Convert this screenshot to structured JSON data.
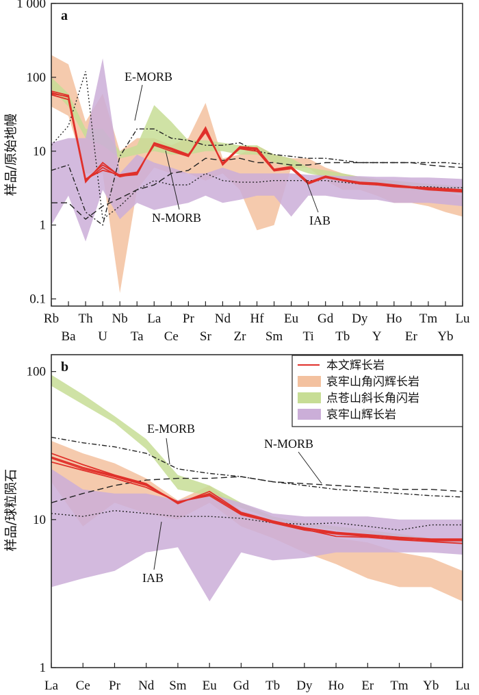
{
  "chart_data": [
    {
      "panel": "a",
      "type": "line",
      "ylabel": "样品/原始地幔",
      "yscale": "log",
      "ylim": [
        0.08,
        1000
      ],
      "yticks": [
        0.1,
        1,
        10,
        100,
        1000
      ],
      "ytick_labels": [
        "0.1",
        "1",
        "10",
        "100",
        "1 000"
      ],
      "categories": [
        "Rb",
        "Ba",
        "Th",
        "U",
        "Nb",
        "Ta",
        "La",
        "Ce",
        "Pr",
        "Sr",
        "Nd",
        "Zr",
        "Hf",
        "Sm",
        "Eu",
        "Ti",
        "Gd",
        "Tb",
        "Dy",
        "Y",
        "Ho",
        "Er",
        "Tm",
        "Yb",
        "Lu"
      ],
      "bands": [
        {
          "id": "ailaoshan-hornblende-gabbro",
          "lower": [
            40,
            30,
            5,
            5,
            0.12,
            3,
            6,
            5,
            5,
            4,
            5,
            3,
            0.85,
            1,
            6,
            6,
            4,
            3,
            3,
            2.5,
            2,
            2,
            1.8,
            1.5,
            1.3
          ],
          "upper": [
            200,
            150,
            25,
            60,
            10,
            15,
            15,
            12,
            15,
            45,
            8,
            9,
            12,
            9,
            8,
            8,
            6,
            5,
            4.5,
            4,
            4,
            3.5,
            3,
            2.8,
            2.5
          ]
        },
        {
          "id": "diancangshan-plagioclase-amphibolite",
          "lower": [
            70,
            40,
            15,
            12,
            8,
            9,
            10,
            9,
            9,
            10,
            10,
            9,
            9,
            7,
            6,
            5,
            4.5,
            4,
            3.5,
            3.5,
            3.3,
            3,
            3,
            2.8,
            2.6
          ],
          "upper": [
            100,
            60,
            20,
            20,
            10,
            12,
            42,
            25,
            14,
            14,
            13,
            12,
            12,
            9,
            8,
            6,
            5.5,
            5,
            4.5,
            4.2,
            4,
            3.8,
            3.6,
            3.5,
            3.3
          ]
        },
        {
          "id": "ailaoshan-gabbro",
          "lower": [
            1,
            2.5,
            0.6,
            3,
            1.2,
            2,
            1.6,
            1.8,
            2,
            2.5,
            2,
            2.2,
            2.5,
            2.5,
            1.3,
            2.5,
            2.5,
            2.3,
            2.2,
            2.2,
            2,
            2,
            2,
            1.9,
            1.8
          ],
          "upper": [
            13,
            15,
            15,
            180,
            5,
            9,
            7,
            6,
            5,
            5,
            6,
            5,
            5,
            5,
            5,
            4.8,
            4.7,
            4.6,
            4.6,
            4.5,
            4.5,
            4.4,
            4.4,
            4.3,
            4.2
          ]
        }
      ],
      "series": [
        {
          "name": "本文辉长岩",
          "values": [
            60,
            55,
            4,
            6,
            4.5,
            5,
            12.5,
            10.5,
            8.5,
            20,
            6.5,
            11,
            10.5,
            5.5,
            6,
            3.7,
            4.5,
            4,
            3.7,
            3.6,
            3.4,
            3.2,
            3.1,
            3,
            2.9
          ]
        },
        {
          "values": [
            65,
            57,
            4.2,
            5.5,
            4.8,
            5.2,
            12,
            10,
            8.5,
            19,
            6.8,
            11.5,
            11,
            5.7,
            6.2,
            3.8,
            4.6,
            4.1,
            3.8,
            3.7,
            3.5,
            3.3,
            3.2,
            3.1,
            3
          ]
        },
        {
          "values": [
            58,
            50,
            3.8,
            7,
            4.6,
            4.8,
            13,
            11,
            9,
            18,
            7,
            10.8,
            10,
            5.4,
            5.8,
            3.6,
            4.4,
            4,
            3.6,
            3.5,
            3.3,
            3.2,
            3,
            2.9,
            2.8
          ]
        },
        {
          "values": [
            62,
            54,
            4.1,
            6.5,
            4.7,
            5.1,
            12.8,
            10.8,
            8.7,
            21,
            6.6,
            11.2,
            10.8,
            5.6,
            6.1,
            3.75,
            4.55,
            4.05,
            3.75,
            3.65,
            3.45,
            3.25,
            3.15,
            3.05,
            2.95
          ]
        }
      ],
      "reference_lines": [
        {
          "label": "E-MORB",
          "style": "dash-dot",
          "values": [
            5.5,
            6.5,
            1.5,
            1,
            8.5,
            20,
            20,
            15,
            14,
            12,
            12,
            13,
            10,
            9,
            8.5,
            8,
            8,
            7.5,
            7,
            7,
            7,
            7,
            7,
            7,
            6.7
          ]
        },
        {
          "label": "N-MORB",
          "style": "dashed",
          "values": [
            2,
            2,
            1.2,
            1.8,
            2.3,
            3,
            3.5,
            5,
            5.5,
            8,
            7.5,
            8,
            7,
            7,
            6.5,
            6.5,
            7,
            7,
            7,
            7,
            7,
            7,
            6.5,
            6.2,
            6
          ]
        },
        {
          "label": "IAB",
          "style": "dotted",
          "values": [
            12,
            22,
            120,
            1.2,
            1.8,
            3,
            4,
            3.5,
            3.5,
            5,
            4,
            3.8,
            3.8,
            4,
            4,
            4,
            4,
            3.8,
            3.6,
            3.5,
            3.4,
            3.3,
            3.3,
            3.2,
            3.2
          ]
        }
      ]
    },
    {
      "panel": "b",
      "type": "line",
      "ylabel": "样品/球粒陨石",
      "yscale": "log",
      "ylim": [
        1,
        130
      ],
      "yticks": [
        1,
        10,
        100
      ],
      "ytick_labels": [
        "1",
        "10",
        "100"
      ],
      "categories": [
        "La",
        "Ce",
        "Pr",
        "Nd",
        "Sm",
        "Eu",
        "Gd",
        "Tb",
        "Dy",
        "Ho",
        "Er",
        "Tm",
        "Yb",
        "Lu"
      ],
      "bands": [
        {
          "id": "ailaoshan-hornblende-gabbro",
          "lower": [
            18,
            9,
            13,
            11,
            10,
            13,
            9,
            7.5,
            6,
            5,
            4,
            3.5,
            3.5,
            2.8
          ],
          "upper": [
            34,
            28,
            24,
            19,
            13.5,
            17,
            11.5,
            10,
            8.5,
            7.5,
            7,
            6,
            5.5,
            4.5
          ]
        },
        {
          "id": "diancangshan-plagioclase-amphibolite",
          "lower": [
            80,
            60,
            45,
            30,
            16,
            14.5,
            12,
            10,
            9,
            8.5,
            8,
            7.5,
            7,
            6.8
          ],
          "upper": [
            95,
            70,
            50,
            35,
            20,
            17,
            13,
            10.5,
            9.5,
            9,
            8.5,
            8,
            7.5,
            7.2
          ]
        },
        {
          "id": "ailaoshan-gabbro",
          "lower": [
            3.5,
            4,
            4.5,
            6,
            6.5,
            2.8,
            6,
            5.3,
            5.5,
            6,
            6,
            6,
            6,
            5.8
          ],
          "upper": [
            22,
            16,
            15,
            15,
            13.5,
            15,
            13,
            11,
            10.5,
            10.5,
            10.5,
            10,
            10,
            10
          ]
        }
      ],
      "series": [
        {
          "name": "本文辉长岩",
          "values": [
            26,
            22,
            19.5,
            17,
            13,
            15,
            11,
            9.5,
            8.5,
            8,
            7.7,
            7.5,
            7.2,
            7.2
          ]
        },
        {
          "values": [
            28,
            23.5,
            20,
            17.5,
            12.8,
            15.5,
            11.2,
            9.8,
            8.8,
            8.2,
            7.9,
            7.6,
            7.4,
            7.4
          ]
        },
        {
          "values": [
            24.5,
            21.5,
            19,
            16.5,
            13.2,
            14.5,
            10.8,
            9.6,
            8.6,
            7.7,
            7.6,
            7.3,
            7.1,
            6.9
          ]
        },
        {
          "values": [
            26.5,
            22.5,
            19.8,
            17.2,
            13.1,
            14.8,
            11.1,
            9.7,
            8.7,
            8.1,
            7.8,
            7.4,
            7.3,
            7.3
          ]
        }
      ],
      "reference_lines": [
        {
          "label": "E-MORB",
          "style": "dash-dot",
          "values": [
            36,
            33,
            31,
            28,
            22,
            20.5,
            19.5,
            18,
            17,
            16,
            15.5,
            15,
            14.5,
            14.2
          ]
        },
        {
          "label": "N-MORB",
          "style": "dashed",
          "values": [
            13,
            15,
            17,
            18.5,
            19,
            19,
            19.5,
            18,
            17.5,
            17,
            16.5,
            16,
            16,
            15.5
          ]
        },
        {
          "label": "IAB",
          "style": "dotted",
          "values": [
            11,
            10.5,
            11.5,
            11,
            10.5,
            10.5,
            10.2,
            9.5,
            9.3,
            9.5,
            9,
            8.5,
            9.2,
            9.2
          ]
        }
      ],
      "legend": {
        "placement": "top-right",
        "entries": [
          {
            "label": "本文辉长岩",
            "color": "#e0302a",
            "kind": "line"
          },
          {
            "label": "哀牢山角闪辉长岩",
            "color": "#f3c19f",
            "kind": "band"
          },
          {
            "label": "点苍山斜长角闪岩",
            "color": "#c7dd95",
            "kind": "band"
          },
          {
            "label": "哀牢山辉长岩",
            "color": "#cbaed8",
            "kind": "band"
          }
        ]
      }
    }
  ],
  "style": {
    "band_colors": {
      "ailaoshan-hornblende-gabbro": "#f3c19f",
      "diancangshan-plagioclase-amphibolite": "#c7dd95",
      "ailaoshan-gabbro": "#cbaed8"
    },
    "sample_color": "#e0302a",
    "reference_color": "#222222"
  }
}
